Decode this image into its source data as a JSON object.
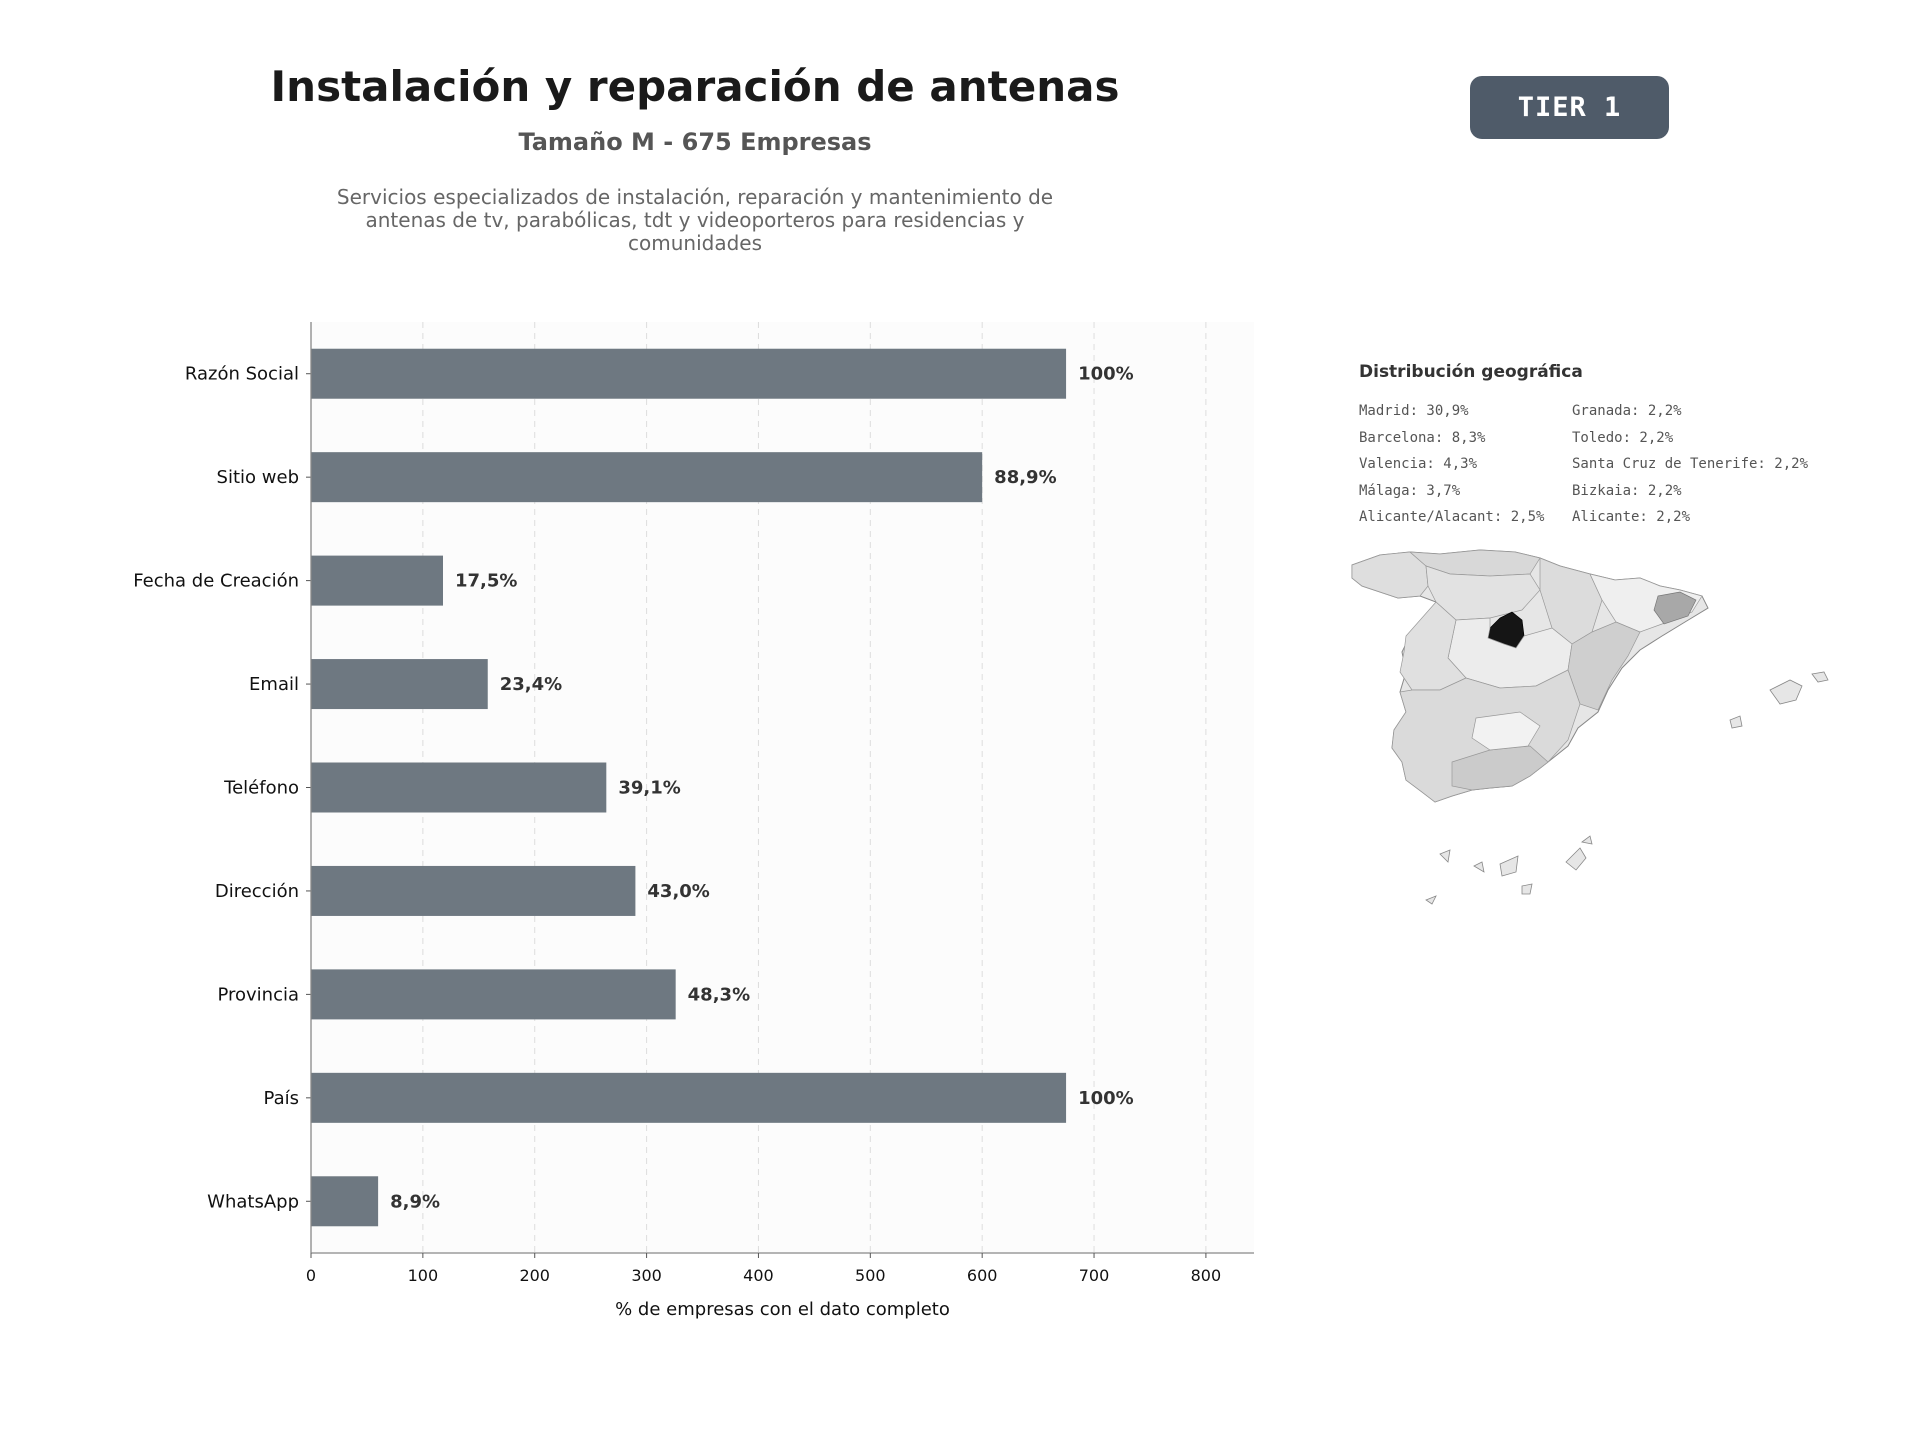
{
  "header": {
    "title": "Instalación y reparación de antenas",
    "subtitle": "Tamaño M - 675 Empresas",
    "description": "Servicios especializados de instalación, reparación y mantenimiento de antenas de tv, parabólicas, tdt y videoporteros para residencias y comunidades",
    "tier_label": "TIER 1",
    "tier_color": "#4f5b69"
  },
  "chart_data": {
    "type": "bar",
    "orientation": "horizontal",
    "categories": [
      "Razón Social",
      "Sitio web",
      "Fecha de Creación",
      "Email",
      "Teléfono",
      "Dirección",
      "Provincia",
      "País",
      "WhatsApp"
    ],
    "values": [
      675,
      600,
      118,
      158,
      264,
      290,
      326,
      675,
      60
    ],
    "data_labels": [
      "100%",
      "88,9%",
      "17,5%",
      "23,4%",
      "39,1%",
      "43,0%",
      "48,3%",
      "100%",
      "8,9%"
    ],
    "xlabel": "% de empresas con el dato completo",
    "xlim": [
      0,
      843
    ],
    "xticks": [
      0,
      100,
      200,
      300,
      400,
      500,
      600,
      700,
      800
    ],
    "grid": "vertical dashed",
    "bar_color": "#6e7881"
  },
  "geo": {
    "title": "Distribución geográfica",
    "col1": [
      "Madrid: 30,9%",
      "Barcelona: 8,3%",
      "Valencia: 4,3%",
      "Málaga: 3,7%",
      "Alicante/Alacant: 2,5%"
    ],
    "col2": [
      "Granada: 2,2%",
      "Toledo: 2,2%",
      "Santa Cruz de Tenerife: 2,2%",
      "Bizkaia: 2,2%",
      "Alicante: 2,2%"
    ]
  }
}
